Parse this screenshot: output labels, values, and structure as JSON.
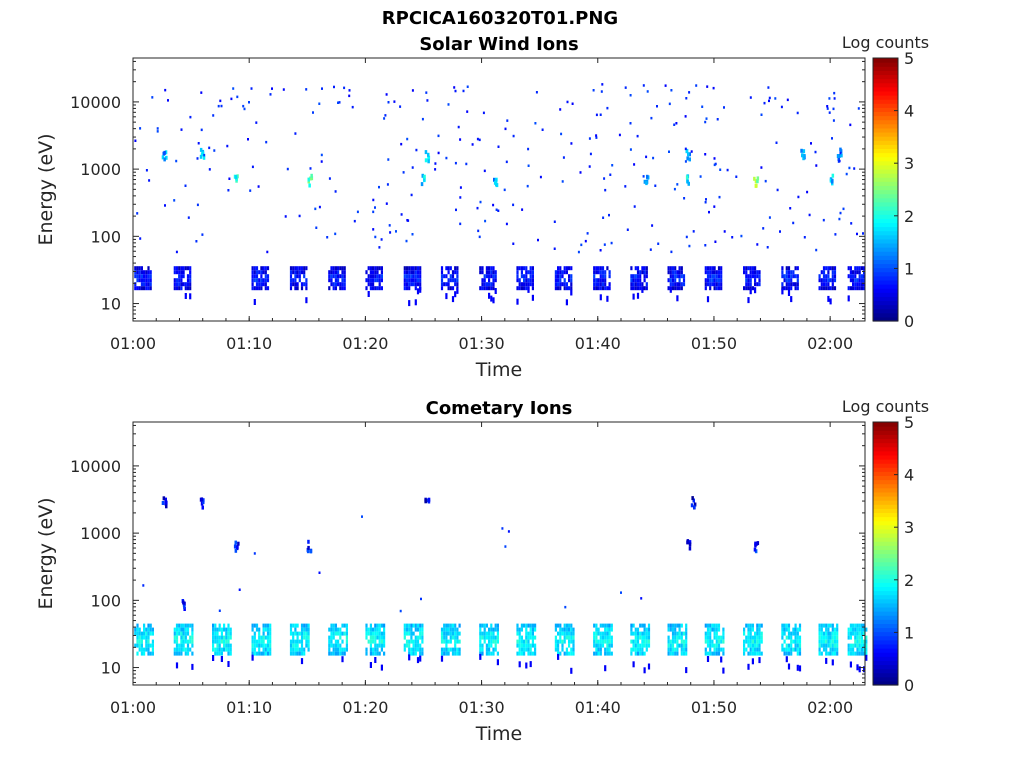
{
  "figure_title": "RPCICA160320T01.PNG",
  "chart_data": [
    {
      "type": "heatmap",
      "title": "Solar Wind Ions",
      "xlabel": "Time",
      "ylabel": "Energy (eV)",
      "x_ticks": [
        "01:00",
        "01:10",
        "01:20",
        "01:30",
        "01:40",
        "01:50",
        "02:00"
      ],
      "x_range_min": [
        0,
        63
      ],
      "y_scale": "log",
      "y_ticks": [
        10,
        100,
        1000,
        10000
      ],
      "y_ticks_text": [
        "10",
        "100",
        "1000",
        "10000"
      ],
      "ylim_eV": [
        5.5,
        45000
      ],
      "colorbar": {
        "label": "Log counts",
        "range": [
          0,
          5
        ],
        "ticks": [
          "0",
          "1",
          "2",
          "3",
          "4",
          "5"
        ],
        "colormap": "jet"
      },
      "low_energy_band": {
        "energy_eV": [
          18,
          36
        ],
        "value_log": 0.8,
        "bursts_start_min": [
          0.1,
          3.5,
          10.2,
          13.5,
          16.8,
          20.0,
          23.3,
          26.5,
          29.8,
          33.0,
          36.3,
          39.6,
          42.8,
          46.0,
          49.2,
          52.5,
          55.8,
          59.0,
          61.5
        ],
        "burst_width_min": 1.4
      },
      "high_energy_hotspots": [
        {
          "t": 2.7,
          "e": 1700,
          "v": 1.4
        },
        {
          "t": 6.0,
          "e": 1700,
          "v": 1.6
        },
        {
          "t": 8.9,
          "e": 700,
          "v": 2.0
        },
        {
          "t": 15.2,
          "e": 700,
          "v": 2.2
        },
        {
          "t": 25.3,
          "e": 1600,
          "v": 1.9
        },
        {
          "t": 25.0,
          "e": 700,
          "v": 1.7
        },
        {
          "t": 31.2,
          "e": 700,
          "v": 1.5
        },
        {
          "t": 44.2,
          "e": 700,
          "v": 1.3
        },
        {
          "t": 47.8,
          "e": 700,
          "v": 1.8
        },
        {
          "t": 47.8,
          "e": 1700,
          "v": 1.5
        },
        {
          "t": 53.6,
          "e": 650,
          "v": 2.6
        },
        {
          "t": 57.6,
          "e": 1700,
          "v": 1.4
        },
        {
          "t": 60.2,
          "e": 700,
          "v": 1.6
        },
        {
          "t": 60.8,
          "e": 1700,
          "v": 1.3
        }
      ]
    },
    {
      "type": "heatmap",
      "title": "Cometary Ions",
      "xlabel": "Time",
      "ylabel": "Energy (eV)",
      "x_ticks": [
        "01:00",
        "01:10",
        "01:20",
        "01:30",
        "01:40",
        "01:50",
        "02:00"
      ],
      "x_range_min": [
        0,
        63
      ],
      "y_scale": "log",
      "y_ticks": [
        10,
        100,
        1000,
        10000
      ],
      "y_ticks_text": [
        "10",
        "100",
        "1000",
        "10000"
      ],
      "ylim_eV": [
        5.5,
        45000
      ],
      "colorbar": {
        "label": "Log counts",
        "range": [
          0,
          5
        ],
        "ticks": [
          "0",
          "1",
          "2",
          "3",
          "4",
          "5"
        ],
        "colormap": "jet"
      },
      "low_energy_band": {
        "energy_eV": [
          16,
          45
        ],
        "value_log": 1.9,
        "bursts_start_min": [
          0.1,
          3.5,
          6.8,
          10.2,
          13.5,
          16.8,
          20.0,
          23.3,
          26.5,
          29.8,
          33.0,
          36.3,
          39.6,
          42.8,
          46.0,
          49.2,
          52.5,
          55.8,
          59.0,
          61.5
        ],
        "burst_width_min": 1.7
      },
      "high_energy_hotspots": [
        {
          "t": 2.7,
          "e": 2900,
          "v": 0.6
        },
        {
          "t": 6.0,
          "e": 2800,
          "v": 0.6
        },
        {
          "t": 8.9,
          "e": 650,
          "v": 0.7
        },
        {
          "t": 15.2,
          "e": 650,
          "v": 0.7
        },
        {
          "t": 25.3,
          "e": 2800,
          "v": 0.5
        },
        {
          "t": 47.8,
          "e": 700,
          "v": 0.7
        },
        {
          "t": 48.2,
          "e": 2900,
          "v": 0.5
        },
        {
          "t": 53.6,
          "e": 650,
          "v": 0.7
        },
        {
          "t": 4.3,
          "e": 90,
          "v": 0.8
        }
      ]
    }
  ]
}
